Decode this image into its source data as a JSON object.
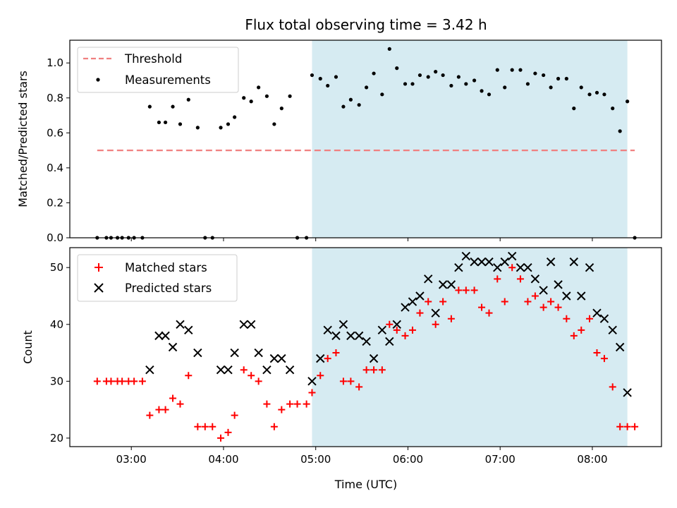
{
  "chart_data": {
    "title": "Flux total observing time = 3.42 h",
    "xlabel": "Time (UTC)",
    "x_unit": "hours UTC",
    "xlim": [
      2.333,
      8.75
    ],
    "x_ticks": [
      {
        "value": 3,
        "label": "03:00"
      },
      {
        "value": 4,
        "label": "04:00"
      },
      {
        "value": 5,
        "label": "05:00"
      },
      {
        "value": 6,
        "label": "06:00"
      },
      {
        "value": 7,
        "label": "07:00"
      },
      {
        "value": 8,
        "label": "08:00"
      }
    ],
    "shaded_span": {
      "x_start": 4.96,
      "x_end": 8.38,
      "color": "#add8e6"
    },
    "panels": [
      {
        "type": "scatter",
        "ylabel": "Matched/Predicted stars",
        "ylim": [
          0,
          1.13
        ],
        "y_ticks": [
          "0.0",
          "0.2",
          "0.4",
          "0.6",
          "0.8",
          "1.0"
        ],
        "legend_position": "top-left",
        "threshold": {
          "name": "Threshold",
          "value": 0.5,
          "x_start": 2.63,
          "x_end": 8.46,
          "color": "#f08080"
        },
        "series": [
          {
            "name": "Measurements",
            "color": "#000000",
            "marker": "dot",
            "x": [
              2.63,
              2.73,
              2.78,
              2.85,
              2.9,
              2.97,
              3.03,
              3.12,
              3.2,
              3.3,
              3.37,
              3.45,
              3.53,
              3.62,
              3.72,
              3.8,
              3.88,
              3.97,
              4.05,
              4.12,
              4.22,
              4.3,
              4.38,
              4.47,
              4.55,
              4.63,
              4.72,
              4.8,
              4.9,
              4.96,
              5.05,
              5.13,
              5.22,
              5.3,
              5.38,
              5.47,
              5.55,
              5.63,
              5.72,
              5.8,
              5.88,
              5.97,
              6.05,
              6.13,
              6.22,
              6.3,
              6.38,
              6.47,
              6.55,
              6.63,
              6.72,
              6.8,
              6.88,
              6.97,
              7.05,
              7.13,
              7.22,
              7.3,
              7.38,
              7.47,
              7.55,
              7.63,
              7.72,
              7.8,
              7.88,
              7.97,
              8.05,
              8.13,
              8.22,
              8.3,
              8.38,
              8.46
            ],
            "y": [
              0,
              0,
              0,
              0,
              0,
              0,
              0,
              0,
              0.75,
              0.66,
              0.66,
              0.75,
              0.65,
              0.79,
              0.63,
              0,
              0,
              0.63,
              0.65,
              0.69,
              0.8,
              0.78,
              0.86,
              0.81,
              0.65,
              0.74,
              0.81,
              0,
              0,
              0.93,
              0.91,
              0.87,
              0.92,
              0.75,
              0.79,
              0.76,
              0.86,
              0.94,
              0.82,
              1.08,
              0.97,
              0.88,
              0.88,
              0.93,
              0.92,
              0.95,
              0.93,
              0.87,
              0.92,
              0.88,
              0.9,
              0.84,
              0.82,
              0.96,
              0.86,
              0.96,
              0.96,
              0.88,
              0.94,
              0.93,
              0.86,
              0.91,
              0.91,
              0.74,
              0.86,
              0.82,
              0.83,
              0.82,
              0.74,
              0.61,
              0.78,
              0
            ]
          }
        ]
      },
      {
        "type": "scatter",
        "ylabel": "Count",
        "ylim": [
          18.5,
          53.5
        ],
        "y_ticks": [
          "20",
          "30",
          "40",
          "50"
        ],
        "legend_position": "top-left",
        "series": [
          {
            "name": "Matched stars",
            "color": "#ff0000",
            "marker": "plus",
            "x": [
              2.63,
              2.73,
              2.78,
              2.85,
              2.9,
              2.97,
              3.03,
              3.12,
              3.2,
              3.3,
              3.37,
              3.45,
              3.53,
              3.62,
              3.72,
              3.8,
              3.88,
              3.97,
              4.05,
              4.12,
              4.22,
              4.3,
              4.38,
              4.47,
              4.55,
              4.63,
              4.72,
              4.8,
              4.9,
              4.96,
              5.05,
              5.13,
              5.22,
              5.3,
              5.38,
              5.47,
              5.55,
              5.63,
              5.72,
              5.8,
              5.88,
              5.97,
              6.05,
              6.13,
              6.22,
              6.3,
              6.38,
              6.47,
              6.55,
              6.63,
              6.72,
              6.8,
              6.88,
              6.97,
              7.05,
              7.13,
              7.22,
              7.3,
              7.38,
              7.47,
              7.55,
              7.63,
              7.72,
              7.8,
              7.88,
              7.97,
              8.05,
              8.13,
              8.22,
              8.3,
              8.38,
              8.46
            ],
            "y": [
              30,
              30,
              30,
              30,
              30,
              30,
              30,
              30,
              24,
              25,
              25,
              27,
              26,
              31,
              22,
              22,
              22,
              20,
              21,
              24,
              32,
              31,
              30,
              26,
              22,
              25,
              26,
              26,
              26,
              28,
              31,
              34,
              35,
              30,
              30,
              29,
              32,
              32,
              32,
              40,
              39,
              38,
              39,
              42,
              44,
              40,
              44,
              41,
              46,
              46,
              46,
              43,
              42,
              48,
              44,
              50,
              48,
              44,
              45,
              43,
              44,
              43,
              41,
              38,
              39,
              41,
              35,
              34,
              29,
              22,
              22,
              22
            ]
          },
          {
            "name": "Predicted stars",
            "color": "#000000",
            "marker": "x",
            "x": [
              3.2,
              3.3,
              3.37,
              3.45,
              3.53,
              3.62,
              3.72,
              3.97,
              4.05,
              4.12,
              4.22,
              4.3,
              4.38,
              4.47,
              4.55,
              4.63,
              4.72,
              4.96,
              5.05,
              5.13,
              5.22,
              5.3,
              5.38,
              5.47,
              5.55,
              5.63,
              5.72,
              5.8,
              5.88,
              5.97,
              6.05,
              6.13,
              6.22,
              6.3,
              6.38,
              6.47,
              6.55,
              6.63,
              6.72,
              6.8,
              6.88,
              6.97,
              7.05,
              7.13,
              7.22,
              7.3,
              7.38,
              7.47,
              7.55,
              7.63,
              7.72,
              7.8,
              7.88,
              7.97,
              8.05,
              8.13,
              8.22,
              8.3,
              8.38
            ],
            "y": [
              32,
              38,
              38,
              36,
              40,
              39,
              35,
              32,
              32,
              35,
              40,
              40,
              35,
              32,
              34,
              34,
              32,
              30,
              34,
              39,
              38,
              40,
              38,
              38,
              37,
              34,
              39,
              37,
              40,
              43,
              44,
              45,
              48,
              42,
              47,
              47,
              50,
              52,
              51,
              51,
              51,
              50,
              51,
              52,
              50,
              50,
              48,
              46,
              51,
              47,
              45,
              51,
              45,
              50,
              42,
              41,
              39,
              36,
              28
            ]
          }
        ]
      }
    ]
  }
}
